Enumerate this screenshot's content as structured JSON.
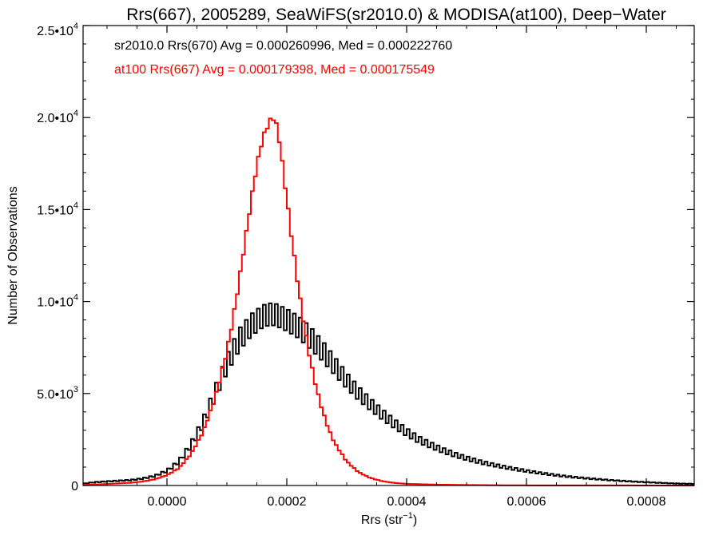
{
  "chart_data": {
    "type": "histogram-step",
    "title": "Rrs(667), 2005289, SeaWiFS(sr2010.0) & MODISA(at100), Deep−Water",
    "xlabel": {
      "base": "Rrs (str",
      "sup": "−1",
      "end": ")"
    },
    "ylabel": "Number of Observations",
    "xlim": [
      -0.00014,
      0.00088
    ],
    "ylim": [
      0,
      25000
    ],
    "x_ticks": [
      {
        "value": 0.0,
        "label": "0.0000"
      },
      {
        "value": 0.0002,
        "label": "0.0002"
      },
      {
        "value": 0.0004,
        "label": "0.0004"
      },
      {
        "value": 0.0006,
        "label": "0.0006"
      },
      {
        "value": 0.0008,
        "label": "0.0008"
      }
    ],
    "y_ticks": [
      {
        "value": 0,
        "label": "0",
        "exp": ""
      },
      {
        "value": 5000,
        "label": "5.0•10",
        "exp": "3"
      },
      {
        "value": 10000,
        "label": "1.0•10",
        "exp": "4"
      },
      {
        "value": 15000,
        "label": "1.5•10",
        "exp": "4"
      },
      {
        "value": 20000,
        "label": "2.0•10",
        "exp": "4"
      },
      {
        "value": 25000,
        "label": "2.5•10",
        "exp": "4"
      }
    ],
    "annotations": [
      {
        "text": "sr2010.0 Rrs(670) Avg = 0.000260996, Med = 0.000222760",
        "color": "#000000"
      },
      {
        "text": "at100 Rrs(667) Avg = 0.000179398, Med = 0.000175549",
        "color": "#ff0000"
      }
    ],
    "series": [
      {
        "color": "#000000",
        "bin_width": 5e-06,
        "x": [
          -0.00014,
          -0.00012,
          -0.0001,
          -8e-05,
          -6e-05,
          -4e-05,
          -2e-05,
          0.0,
          2e-05,
          4e-05,
          6e-05,
          8e-05,
          0.0001,
          0.00012,
          0.00014,
          0.00016,
          0.00017,
          0.00018,
          0.0002,
          0.00022,
          0.00024,
          0.00026,
          0.00028,
          0.0003,
          0.00032,
          0.00034,
          0.00036,
          0.00038,
          0.0004,
          0.00042,
          0.00044,
          0.00046,
          0.00048,
          0.0005,
          0.00052,
          0.00054,
          0.00056,
          0.00058,
          0.0006,
          0.00062,
          0.00064,
          0.00066,
          0.00068,
          0.0007,
          0.00072,
          0.00074,
          0.00076,
          0.00078,
          0.0008,
          0.00082,
          0.00084,
          0.00086,
          0.00088
        ],
        "y": [
          100,
          180,
          220,
          260,
          300,
          380,
          520,
          800,
          1300,
          2200,
          3400,
          5000,
          6600,
          7900,
          8700,
          9200,
          9300,
          9300,
          9000,
          8600,
          8000,
          7300,
          6500,
          5700,
          5000,
          4400,
          3850,
          3350,
          2900,
          2500,
          2200,
          1920,
          1680,
          1480,
          1300,
          1150,
          1020,
          900,
          790,
          690,
          600,
          520,
          450,
          390,
          340,
          290,
          250,
          210,
          180,
          150,
          120,
          100,
          90
        ],
        "jagged": 600
      },
      {
        "color": "#ff0000",
        "bin_width": 5e-06,
        "x": [
          -0.00014,
          -0.0001,
          -6e-05,
          -4e-05,
          -2e-05,
          0.0,
          2e-05,
          4e-05,
          6e-05,
          8e-05,
          0.0001,
          0.00011,
          0.00012,
          0.00013,
          0.00014,
          0.00015,
          0.00016,
          0.00017,
          0.000175,
          0.00018,
          0.000185,
          0.00019,
          0.0002,
          0.00021,
          0.00022,
          0.00023,
          0.00024,
          0.00025,
          0.00026,
          0.00027,
          0.00028,
          0.0003,
          0.00032,
          0.00034,
          0.00036,
          0.00038,
          0.0004,
          0.00044,
          0.00048,
          0.00052,
          0.00056,
          0.0006,
          0.00088
        ],
        "y": [
          30,
          80,
          150,
          220,
          340,
          560,
          950,
          1700,
          2900,
          4700,
          7300,
          9000,
          11000,
          13200,
          15400,
          17400,
          18900,
          19700,
          20000,
          19900,
          19300,
          18200,
          15600,
          13000,
          10600,
          8500,
          6700,
          5200,
          4000,
          3050,
          2300,
          1300,
          720,
          400,
          230,
          140,
          90,
          55,
          35,
          22,
          12,
          8,
          0
        ],
        "jagged": 100
      }
    ]
  }
}
